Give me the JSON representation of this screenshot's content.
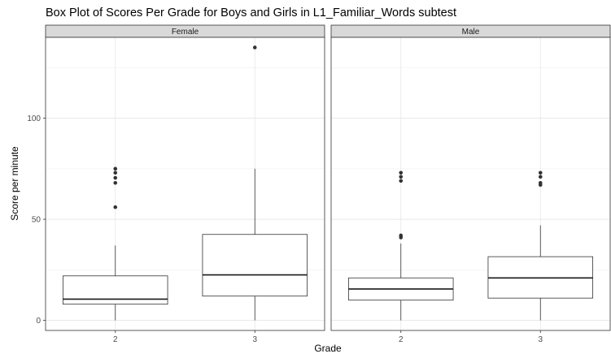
{
  "chart_data": {
    "type": "boxplot",
    "title": "Box Plot of Scores Per Grade for Boys and Girls in L1_Familiar_Words subtest",
    "xlabel": "Grade",
    "ylabel": "Score per minute",
    "ylim": [
      -5,
      140
    ],
    "yticks": [
      0,
      50,
      100
    ],
    "grid": true,
    "facets": [
      {
        "name": "Female",
        "groups": [
          {
            "category": "2",
            "whisker_low": 0,
            "q1": 8,
            "median": 10.5,
            "q3": 22,
            "whisker_high": 37,
            "outliers": [
              56,
              68,
              70.5,
              73,
              75
            ]
          },
          {
            "category": "3",
            "whisker_low": 0,
            "q1": 12,
            "median": 22.5,
            "q3": 42.5,
            "whisker_high": 75,
            "outliers": [
              135
            ]
          }
        ]
      },
      {
        "name": "Male",
        "groups": [
          {
            "category": "2",
            "whisker_low": 0,
            "q1": 10,
            "median": 15.5,
            "q3": 21,
            "whisker_high": 38,
            "outliers": [
              41,
              42,
              69,
              71,
              73
            ]
          },
          {
            "category": "3",
            "whisker_low": 0,
            "q1": 11,
            "median": 21,
            "q3": 31.5,
            "whisker_high": 47,
            "outliers": [
              67,
              68,
              71,
              73
            ]
          }
        ]
      }
    ]
  }
}
